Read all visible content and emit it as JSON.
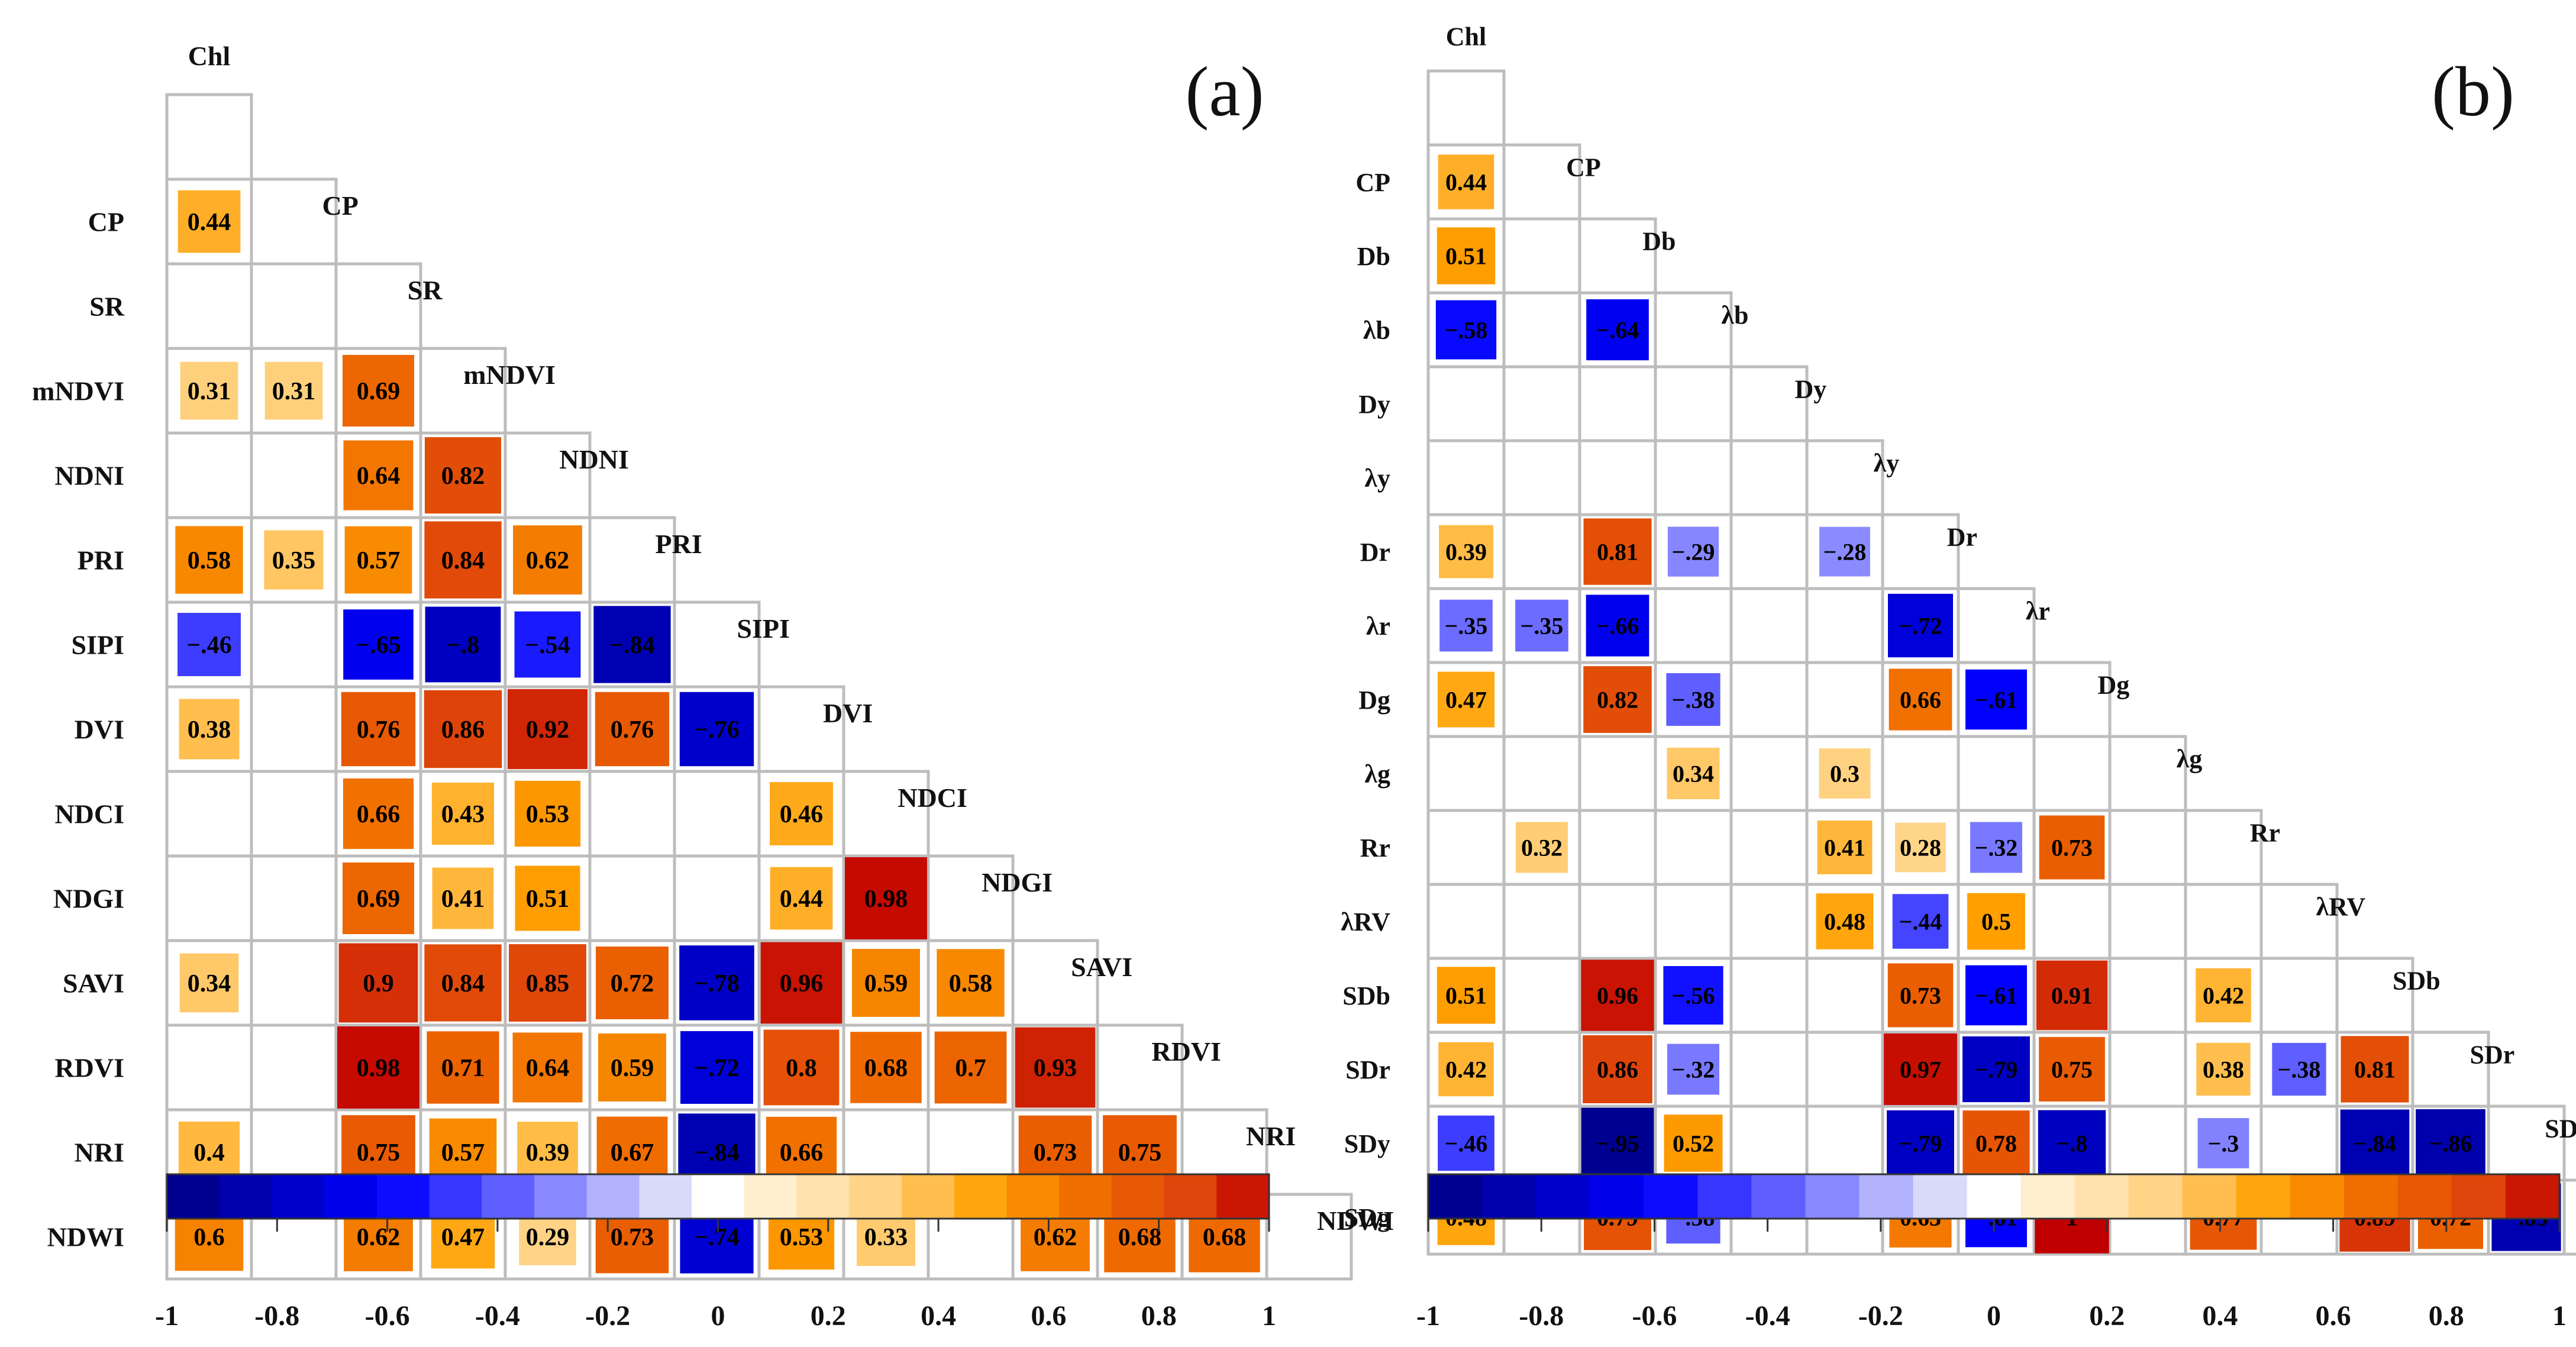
{
  "chart_data": [
    {
      "type": "heatmap",
      "panel_label": "(a)",
      "variables": [
        "Chl",
        "CP",
        "SR",
        "mNDVI",
        "NDNI",
        "PRI",
        "SIPI",
        "DVI",
        "NDCI",
        "NDGI",
        "SAVI",
        "RDVI",
        "NRI",
        "NDWI"
      ],
      "row_labels": [
        "CP",
        "SR",
        "mNDVI",
        "NDNI",
        "PRI",
        "SIPI",
        "DVI",
        "NDCI",
        "NDGI",
        "SAVI",
        "RDVI",
        "NRI",
        "NDWI"
      ],
      "column_labels": [
        "Chl",
        "CP",
        "SR",
        "mNDVI",
        "NDNI",
        "PRI",
        "SIPI",
        "DVI",
        "NDCI",
        "NDGI",
        "SAVI",
        "RDVI",
        "NRI"
      ],
      "matrix": [
        [
          0.44
        ],
        [
          null,
          null
        ],
        [
          0.31,
          0.31,
          0.69
        ],
        [
          null,
          null,
          0.64,
          0.82
        ],
        [
          0.58,
          0.35,
          0.57,
          0.84,
          0.62
        ],
        [
          -0.46,
          null,
          -0.65,
          -0.8,
          -0.54,
          -0.84
        ],
        [
          0.38,
          null,
          0.76,
          0.86,
          0.92,
          0.76,
          -0.76
        ],
        [
          null,
          null,
          0.66,
          0.43,
          0.53,
          null,
          null,
          0.46
        ],
        [
          null,
          null,
          0.69,
          0.41,
          0.51,
          null,
          null,
          0.44,
          0.98
        ],
        [
          0.34,
          null,
          0.9,
          0.84,
          0.85,
          0.72,
          -0.78,
          0.96,
          0.59,
          0.58
        ],
        [
          null,
          null,
          0.98,
          0.71,
          0.64,
          0.59,
          -0.72,
          0.8,
          0.68,
          0.7,
          0.93
        ],
        [
          0.4,
          null,
          0.75,
          0.57,
          0.39,
          0.67,
          -0.84,
          0.66,
          null,
          null,
          0.73,
          0.75
        ],
        [
          0.6,
          null,
          0.62,
          0.47,
          0.29,
          0.73,
          -0.74,
          0.53,
          0.33,
          null,
          0.62,
          0.68,
          0.68
        ]
      ],
      "colorbar": {
        "min": -1,
        "max": 1,
        "ticks": [
          "-1",
          "-0.8",
          "-0.6",
          "-0.4",
          "-0.2",
          "0",
          "0.2",
          "0.4",
          "0.6",
          "0.8",
          "1"
        ]
      }
    },
    {
      "type": "heatmap",
      "panel_label": "(b)",
      "variables": [
        "Chl",
        "CP",
        "Db",
        "λb",
        "Dy",
        "λy",
        "Dr",
        "λr",
        "Dg",
        "λg",
        "Rr",
        "λRV",
        "SDb",
        "SDr",
        "SDy",
        "SDg"
      ],
      "row_labels": [
        "CP",
        "Db",
        "λb",
        "Dy",
        "λy",
        "Dr",
        "λr",
        "Dg",
        "λg",
        "Rr",
        "λRV",
        "SDb",
        "SDr",
        "SDy",
        "SDg"
      ],
      "column_labels": [
        "Chl",
        "CP",
        "Db",
        "λb",
        "Dy",
        "λy",
        "Dr",
        "λr",
        "Dg",
        "λg",
        "Rr",
        "λRV",
        "SDb",
        "SDr",
        "SDy"
      ],
      "matrix": [
        [
          0.44
        ],
        [
          0.51,
          null
        ],
        [
          -0.58,
          null,
          -0.64
        ],
        [
          null,
          null,
          null,
          null
        ],
        [
          null,
          null,
          null,
          null,
          null
        ],
        [
          0.39,
          null,
          0.81,
          -0.29,
          null,
          -0.28
        ],
        [
          -0.35,
          -0.35,
          -0.66,
          null,
          null,
          null,
          -0.72
        ],
        [
          0.47,
          null,
          0.82,
          -0.38,
          null,
          null,
          0.66,
          -0.61
        ],
        [
          null,
          null,
          null,
          0.34,
          null,
          0.3,
          null,
          null,
          null
        ],
        [
          null,
          0.32,
          null,
          null,
          null,
          0.41,
          0.28,
          -0.32,
          0.73,
          null
        ],
        [
          null,
          null,
          null,
          null,
          null,
          0.48,
          -0.44,
          0.5,
          null,
          null,
          null
        ],
        [
          0.51,
          null,
          0.96,
          -0.56,
          null,
          null,
          0.73,
          -0.61,
          0.91,
          null,
          0.42,
          null
        ],
        [
          0.42,
          null,
          0.86,
          -0.32,
          null,
          null,
          0.97,
          -0.79,
          0.75,
          null,
          0.38,
          -0.38,
          0.81
        ],
        [
          -0.46,
          null,
          -0.95,
          0.52,
          null,
          null,
          -0.79,
          0.78,
          -0.8,
          null,
          -0.3,
          null,
          -0.84,
          -0.86
        ],
        [
          0.48,
          null,
          0.79,
          -0.38,
          null,
          null,
          0.63,
          -0.61,
          1,
          null,
          0.77,
          null,
          0.89,
          0.72,
          -0.85
        ]
      ],
      "colorbar": {
        "min": -1,
        "max": 1,
        "ticks": [
          "-1",
          "-0.8",
          "-0.6",
          "-0.4",
          "-0.2",
          "0",
          "0.2",
          "0.4",
          "0.6",
          "0.8",
          "1"
        ]
      }
    }
  ]
}
